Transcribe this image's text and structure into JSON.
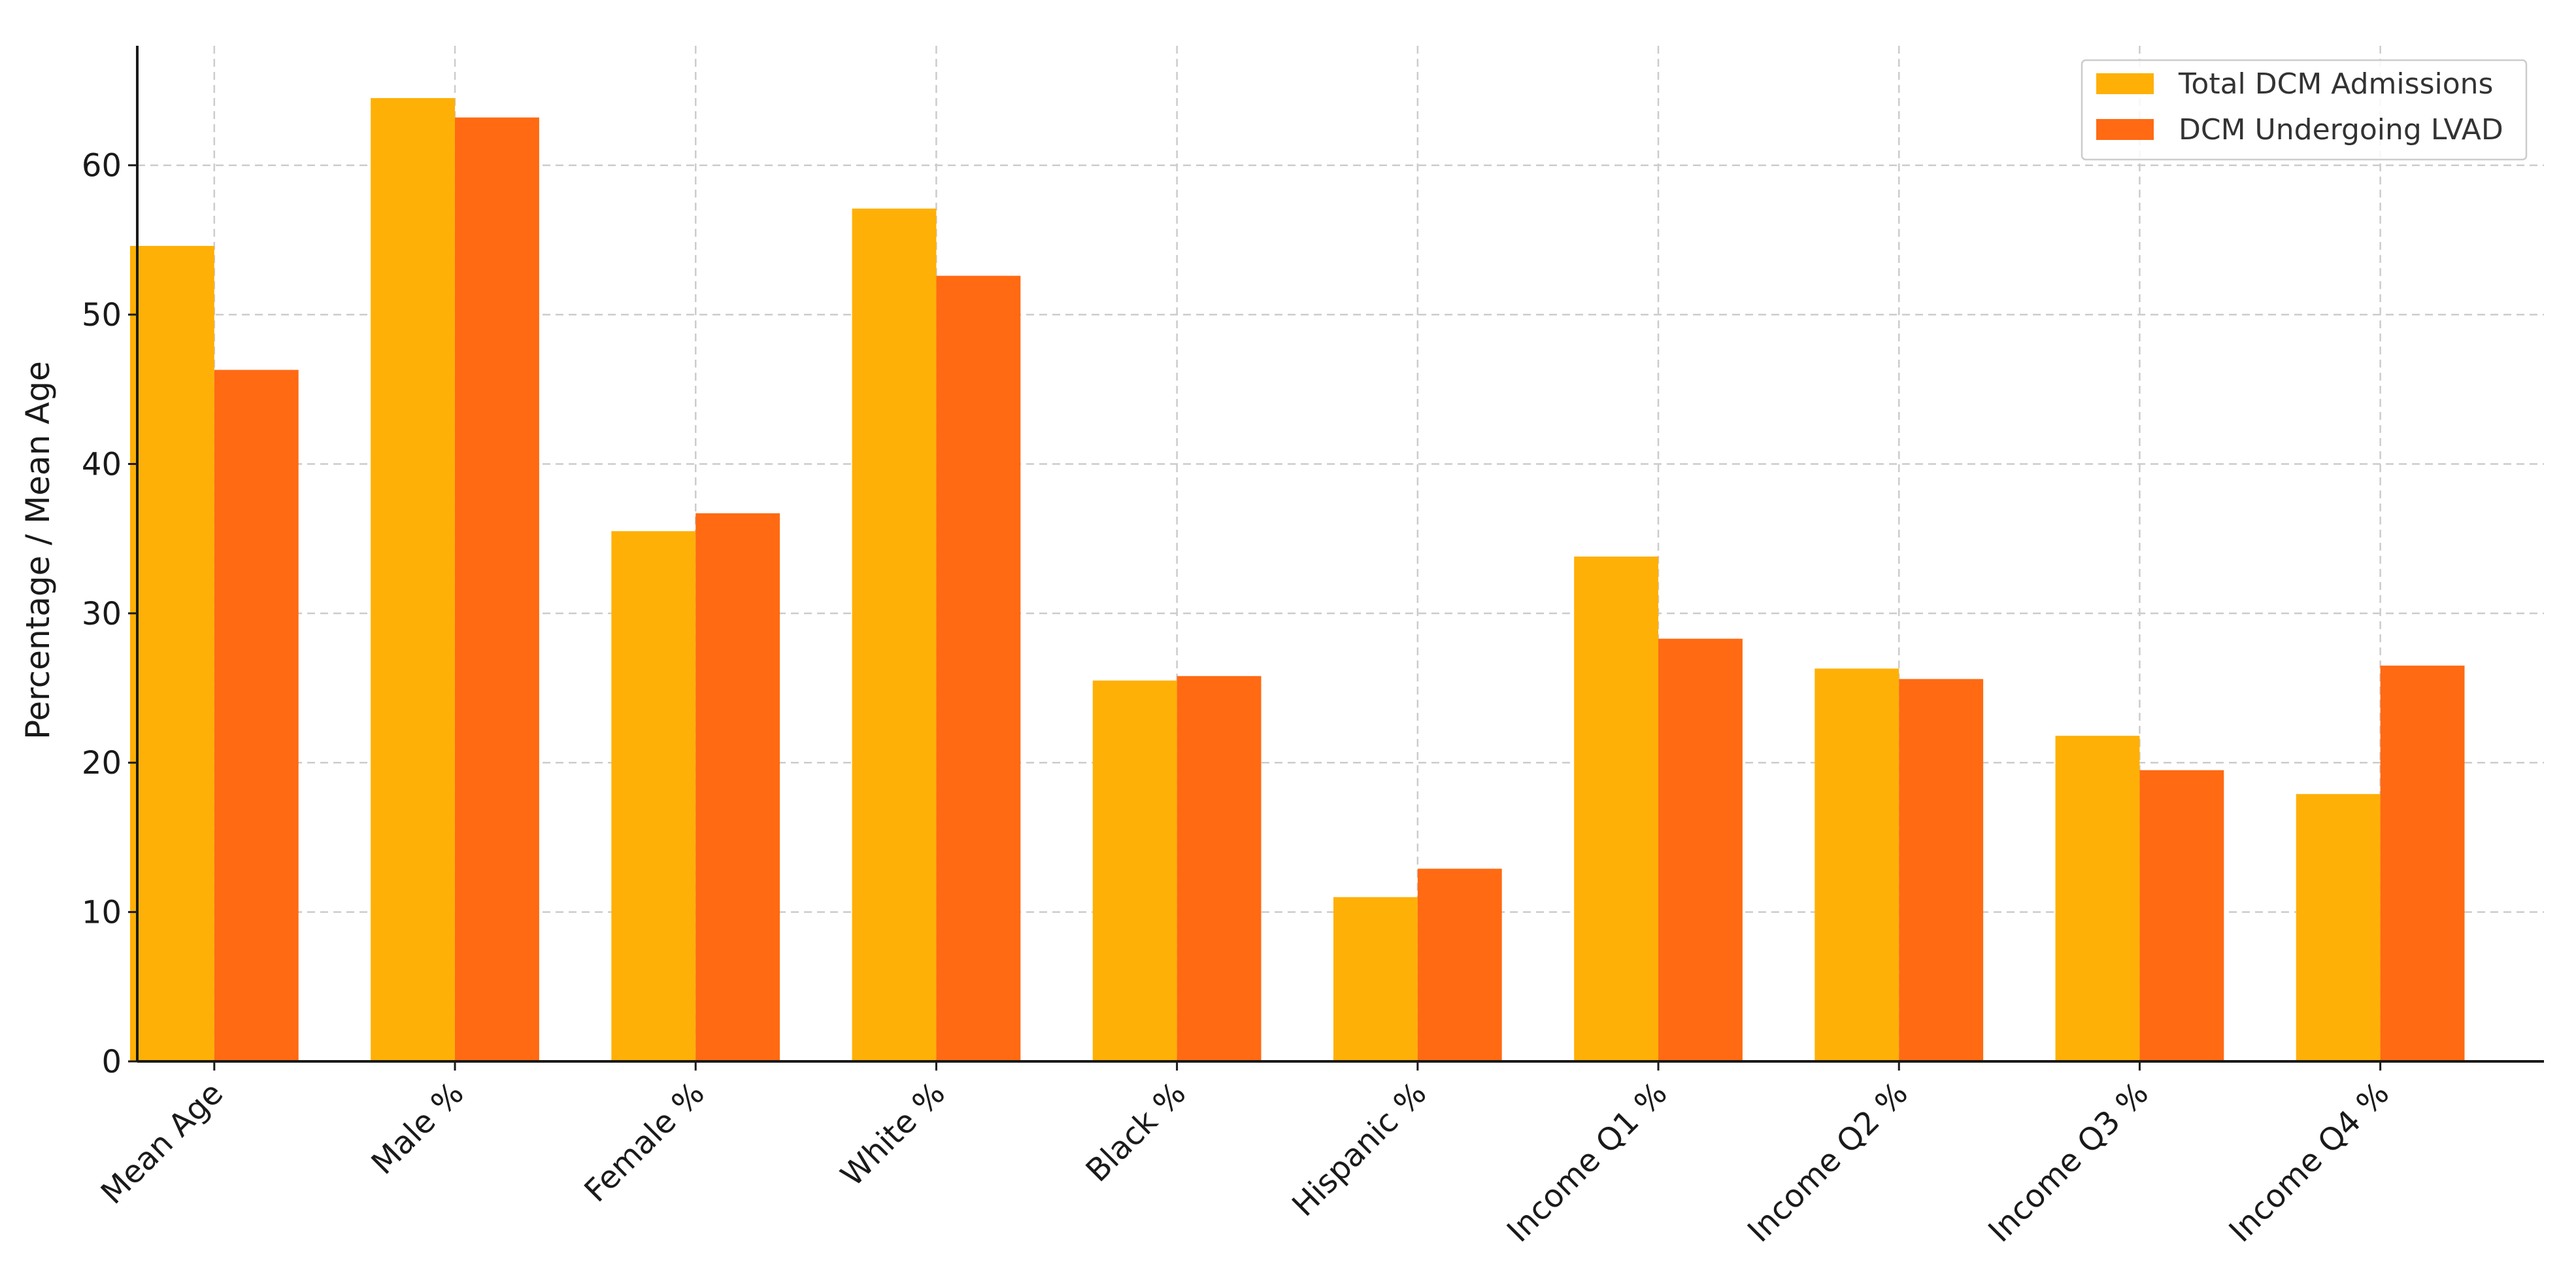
{
  "chart_data": {
    "type": "bar",
    "title": "",
    "xlabel": "",
    "ylabel": "Percentage / Mean Age",
    "ylim": [
      0,
      68
    ],
    "yticks": [
      0,
      10,
      20,
      30,
      40,
      50,
      60
    ],
    "grid": true,
    "legend_position": "top-right",
    "categories": [
      "Mean Age",
      "Male %",
      "Female %",
      "White %",
      "Black %",
      "Hispanic %",
      "Income Q1 %",
      "Income Q2 %",
      "Income Q3 %",
      "Income Q4 %"
    ],
    "series": [
      {
        "name": "Total DCM Admissions",
        "color": "#FFB007",
        "values": [
          54.6,
          64.5,
          35.5,
          57.1,
          25.5,
          11.0,
          33.8,
          26.3,
          21.8,
          17.9
        ]
      },
      {
        "name": "DCM Undergoing LVAD",
        "color": "#FF6A13",
        "values": [
          46.3,
          63.2,
          36.7,
          52.6,
          25.8,
          12.9,
          28.3,
          25.6,
          19.5,
          26.5
        ]
      }
    ]
  }
}
